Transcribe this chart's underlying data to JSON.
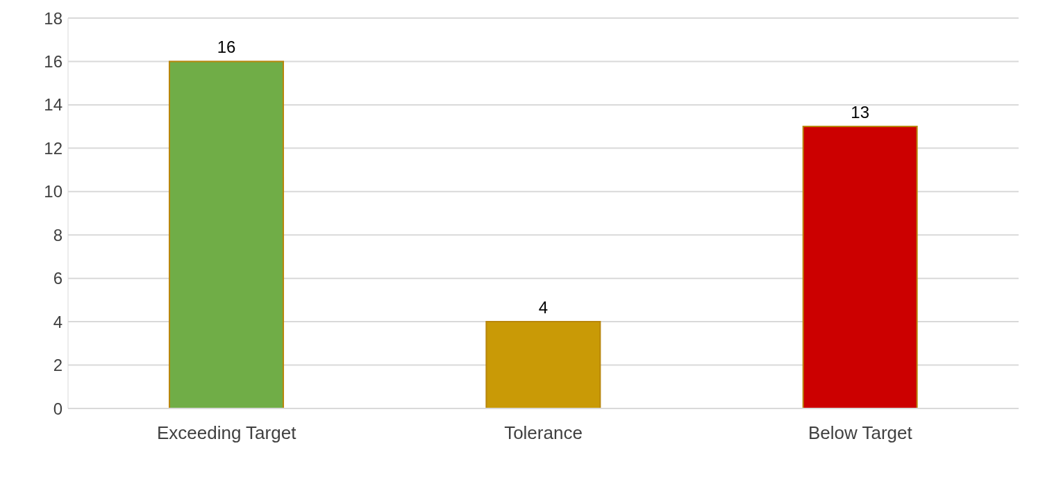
{
  "chart_data": {
    "type": "bar",
    "categories": [
      "Exceeding Target",
      "Tolerance",
      "Below Target"
    ],
    "values": [
      16,
      4,
      13
    ],
    "colors": [
      "#70ad47",
      "#c99a06",
      "#cc0000"
    ],
    "ylim": [
      0,
      18
    ],
    "yticks": [
      0,
      2,
      4,
      6,
      8,
      10,
      12,
      14,
      16,
      18
    ],
    "grid": "y",
    "data_labels": true
  }
}
